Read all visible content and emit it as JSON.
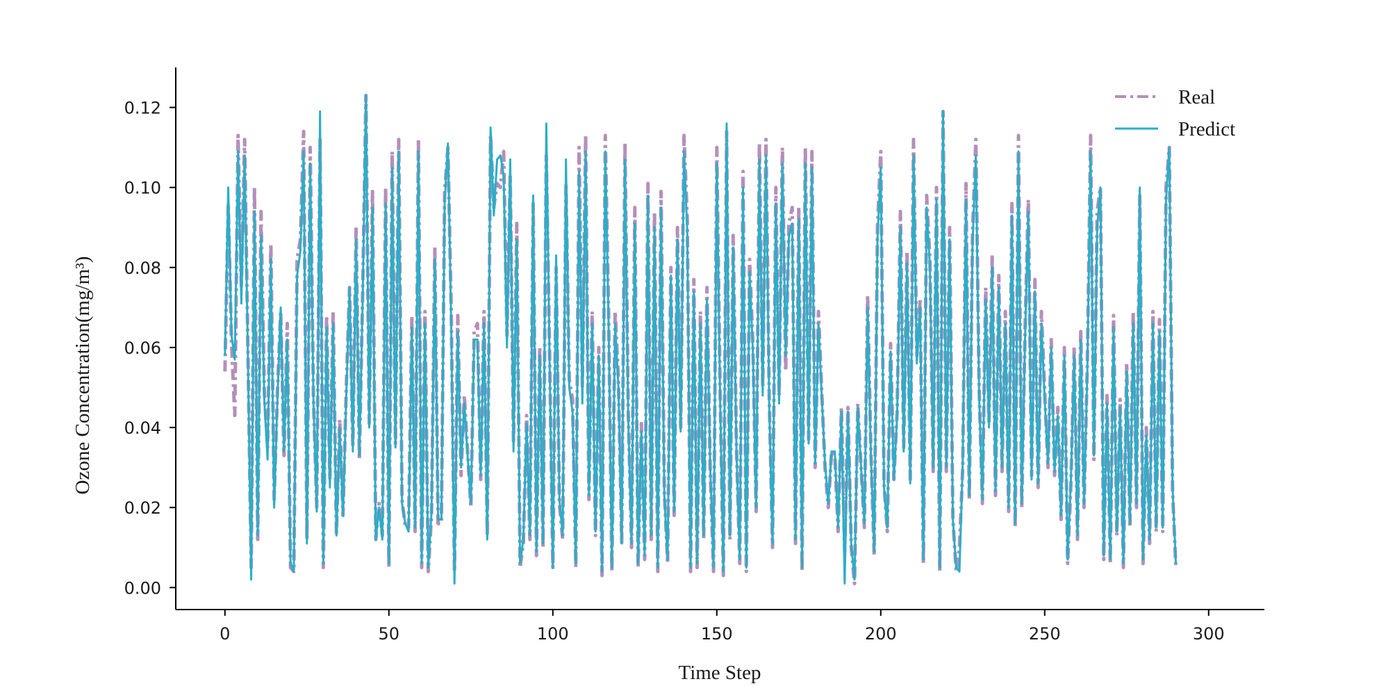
{
  "chart_data": {
    "type": "line",
    "title": "",
    "xlabel": "Time Step",
    "ylabel": "Ozone Concentration(mg/m³)",
    "xlim": [
      -15,
      317
    ],
    "ylim": [
      -0.0055,
      0.13
    ],
    "xticks": [
      0,
      50,
      100,
      150,
      200,
      250,
      300
    ],
    "yticks": [
      0.0,
      0.02,
      0.04,
      0.06,
      0.08,
      0.1,
      0.12
    ],
    "ytick_labels": [
      "0.00",
      "0.02",
      "0.04",
      "0.06",
      "0.08",
      "0.10",
      "0.12"
    ],
    "grid": false,
    "legend_position": "top-right",
    "series": [
      {
        "name": "Real",
        "color": "#b48fb8",
        "style": "dash-dot",
        "x_start": 0,
        "x_step": 1,
        "values": [
          0.054,
          0.096,
          0.061,
          0.043,
          0.113,
          0.075,
          0.112,
          0.06,
          0.005,
          0.1,
          0.012,
          0.094,
          0.049,
          0.035,
          0.086,
          0.022,
          0.049,
          0.069,
          0.033,
          0.066,
          0.005,
          0.004,
          0.082,
          0.087,
          0.114,
          0.012,
          0.11,
          0.047,
          0.02,
          0.112,
          0.005,
          0.068,
          0.027,
          0.069,
          0.013,
          0.042,
          0.018,
          0.05,
          0.075,
          0.035,
          0.09,
          0.032,
          0.074,
          0.123,
          0.041,
          0.099,
          0.012,
          0.021,
          0.013,
          0.1,
          0.005,
          0.109,
          0.036,
          0.112,
          0.022,
          0.015,
          0.015,
          0.068,
          0.014,
          0.112,
          0.005,
          0.069,
          0.004,
          0.018,
          0.085,
          0.016,
          0.016,
          0.099,
          0.11,
          0.07,
          0.004,
          0.068,
          0.028,
          0.048,
          0.034,
          0.02,
          0.064,
          0.066,
          0.027,
          0.069,
          0.013,
          0.113,
          0.095,
          0.101,
          0.1,
          0.109,
          0.063,
          0.103,
          0.036,
          0.091,
          0.005,
          0.011,
          0.043,
          0.012,
          0.096,
          0.008,
          0.06,
          0.01,
          0.108,
          0.059,
          0.005,
          0.08,
          0.021,
          0.012,
          0.101,
          0.052,
          0.047,
          0.005,
          0.11,
          0.05,
          0.113,
          0.022,
          0.069,
          0.013,
          0.06,
          0.003,
          0.113,
          0.069,
          0.004,
          0.069,
          0.052,
          0.011,
          0.111,
          0.044,
          0.01,
          0.095,
          0.005,
          0.041,
          0.007,
          0.101,
          0.012,
          0.094,
          0.004,
          0.099,
          0.024,
          0.006,
          0.08,
          0.018,
          0.09,
          0.04,
          0.113,
          0.092,
          0.004,
          0.077,
          0.005,
          0.069,
          0.012,
          0.075,
          0.029,
          0.004,
          0.11,
          0.05,
          0.003,
          0.114,
          0.012,
          0.088,
          0.035,
          0.006,
          0.104,
          0.004,
          0.082,
          0.061,
          0.019,
          0.111,
          0.05,
          0.112,
          0.047,
          0.01,
          0.1,
          0.048,
          0.11,
          0.054,
          0.091,
          0.095,
          0.011,
          0.095,
          0.004,
          0.11,
          0.037,
          0.109,
          0.03,
          0.069,
          0.049,
          0.03,
          0.02,
          0.034,
          0.033,
          0.014,
          0.045,
          0.009,
          0.045,
          0.01,
          0.001,
          0.046,
          0.03,
          0.015,
          0.073,
          0.034,
          0.008,
          0.09,
          0.109,
          0.026,
          0.014,
          0.061,
          0.027,
          0.044,
          0.094,
          0.035,
          0.084,
          0.027,
          0.112,
          0.058,
          0.072,
          0.006,
          0.098,
          0.082,
          0.029,
          0.1,
          0.004,
          0.119,
          0.029,
          0.09,
          0.017,
          0.004,
          0.01,
          0.03,
          0.101,
          0.022,
          0.089,
          0.112,
          0.05,
          0.021,
          0.075,
          0.041,
          0.083,
          0.023,
          0.078,
          0.029,
          0.069,
          0.019,
          0.096,
          0.015,
          0.113,
          0.02,
          0.064,
          0.097,
          0.028,
          0.077,
          0.025,
          0.069,
          0.049,
          0.03,
          0.062,
          0.028,
          0.045,
          0.017,
          0.06,
          0.006,
          0.026,
          0.06,
          0.012,
          0.064,
          0.02,
          0.056,
          0.113,
          0.032,
          0.094,
          0.1,
          0.007,
          0.048,
          0.006,
          0.068,
          0.013,
          0.047,
          0.005,
          0.056,
          0.015,
          0.069,
          0.02,
          0.098,
          0.006,
          0.04,
          0.011,
          0.069,
          0.014,
          0.067,
          0.014,
          0.1,
          0.11,
          0.024,
          0.005
        ]
      },
      {
        "name": "Predict",
        "color": "#2aaec8",
        "style": "solid",
        "x_start": 0,
        "x_step": 1,
        "values": [
          0.058,
          0.1,
          0.063,
          0.057,
          0.109,
          0.071,
          0.108,
          0.058,
          0.002,
          0.094,
          0.013,
          0.088,
          0.047,
          0.032,
          0.082,
          0.02,
          0.047,
          0.07,
          0.034,
          0.062,
          0.006,
          0.004,
          0.078,
          0.084,
          0.109,
          0.011,
          0.106,
          0.046,
          0.019,
          0.119,
          0.006,
          0.065,
          0.025,
          0.066,
          0.013,
          0.04,
          0.018,
          0.048,
          0.075,
          0.034,
          0.087,
          0.033,
          0.072,
          0.123,
          0.04,
          0.095,
          0.012,
          0.02,
          0.012,
          0.096,
          0.006,
          0.105,
          0.035,
          0.109,
          0.021,
          0.016,
          0.014,
          0.065,
          0.015,
          0.109,
          0.006,
          0.066,
          0.005,
          0.019,
          0.082,
          0.017,
          0.017,
          0.096,
          0.111,
          0.066,
          0.001,
          0.064,
          0.03,
          0.046,
          0.033,
          0.021,
          0.062,
          0.062,
          0.028,
          0.066,
          0.012,
          0.115,
          0.093,
          0.107,
          0.108,
          0.103,
          0.06,
          0.107,
          0.034,
          0.087,
          0.006,
          0.012,
          0.041,
          0.013,
          0.098,
          0.009,
          0.058,
          0.011,
          0.116,
          0.057,
          0.005,
          0.083,
          0.022,
          0.013,
          0.107,
          0.05,
          0.044,
          0.006,
          0.104,
          0.046,
          0.109,
          0.023,
          0.066,
          0.014,
          0.058,
          0.004,
          0.109,
          0.066,
          0.005,
          0.066,
          0.05,
          0.011,
          0.107,
          0.042,
          0.011,
          0.091,
          0.006,
          0.039,
          0.008,
          0.098,
          0.013,
          0.09,
          0.005,
          0.095,
          0.023,
          0.007,
          0.078,
          0.019,
          0.087,
          0.039,
          0.109,
          0.089,
          0.005,
          0.074,
          0.006,
          0.066,
          0.013,
          0.072,
          0.03,
          0.005,
          0.106,
          0.048,
          0.004,
          0.116,
          0.013,
          0.085,
          0.034,
          0.007,
          0.1,
          0.005,
          0.079,
          0.059,
          0.02,
          0.107,
          0.048,
          0.108,
          0.045,
          0.011,
          0.096,
          0.046,
          0.106,
          0.058,
          0.088,
          0.091,
          0.012,
          0.092,
          0.005,
          0.106,
          0.036,
          0.105,
          0.031,
          0.066,
          0.048,
          0.031,
          0.021,
          0.034,
          0.034,
          0.015,
          0.044,
          0.001,
          0.044,
          0.011,
          0.002,
          0.045,
          0.03,
          0.016,
          0.07,
          0.033,
          0.009,
          0.087,
          0.105,
          0.025,
          0.015,
          0.059,
          0.027,
          0.043,
          0.09,
          0.034,
          0.081,
          0.026,
          0.108,
          0.056,
          0.07,
          0.007,
          0.095,
          0.08,
          0.03,
          0.097,
          0.005,
          0.119,
          0.03,
          0.087,
          0.017,
          0.005,
          0.004,
          0.031,
          0.097,
          0.023,
          0.086,
          0.108,
          0.048,
          0.022,
          0.072,
          0.04,
          0.08,
          0.024,
          0.075,
          0.03,
          0.066,
          0.02,
          0.093,
          0.016,
          0.109,
          0.021,
          0.062,
          0.094,
          0.027,
          0.074,
          0.026,
          0.066,
          0.047,
          0.031,
          0.06,
          0.029,
          0.043,
          0.018,
          0.058,
          0.007,
          0.027,
          0.058,
          0.013,
          0.062,
          0.021,
          0.054,
          0.109,
          0.033,
          0.09,
          0.1,
          0.008,
          0.046,
          0.007,
          0.065,
          0.014,
          0.045,
          0.006,
          0.054,
          0.016,
          0.066,
          0.021,
          0.1,
          0.007,
          0.038,
          0.012,
          0.066,
          0.015,
          0.064,
          0.015,
          0.097,
          0.11,
          0.025,
          0.006
        ]
      }
    ]
  }
}
